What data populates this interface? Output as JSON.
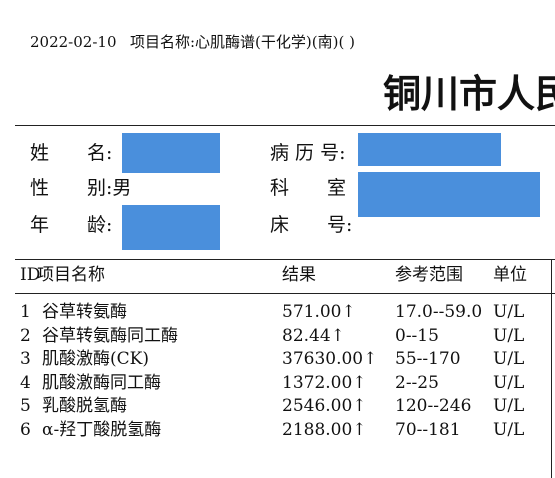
{
  "header": {
    "date": "2022-02-10",
    "item_name": "项目名称:心肌酶谱(干化学)(南)( )"
  },
  "title": "铜川市人民",
  "patient": {
    "name_label": "姓　　名:",
    "record_label": "病 历 号:",
    "sex_label": "性　　别:男",
    "dept_label": "科　　室",
    "age_label": "年　　龄:",
    "bed_label": "床　　号:"
  },
  "table": {
    "columns": [
      "ID",
      "项目名称",
      "结果",
      "参考范围",
      "单位"
    ],
    "rows": [
      [
        "1",
        "谷草转氨酶",
        "571.00↑",
        "17.0--59.0",
        "U/L"
      ],
      [
        "2",
        "谷草转氨酶同工酶",
        "82.44↑",
        "0--15",
        "U/L"
      ],
      [
        "3",
        "肌酸激酶(CK)",
        "37630.00↑",
        "55--170",
        "U/L"
      ],
      [
        "4",
        "肌酸激酶同工酶",
        "1372.00↑",
        "2--25",
        "U/L"
      ],
      [
        "5",
        "乳酸脱氢酶",
        "2546.00↑",
        "120--246",
        "U/L"
      ],
      [
        "6",
        "α-羟丁酸脱氢酶",
        "2188.00↑",
        "70--181",
        "U/L"
      ]
    ]
  }
}
